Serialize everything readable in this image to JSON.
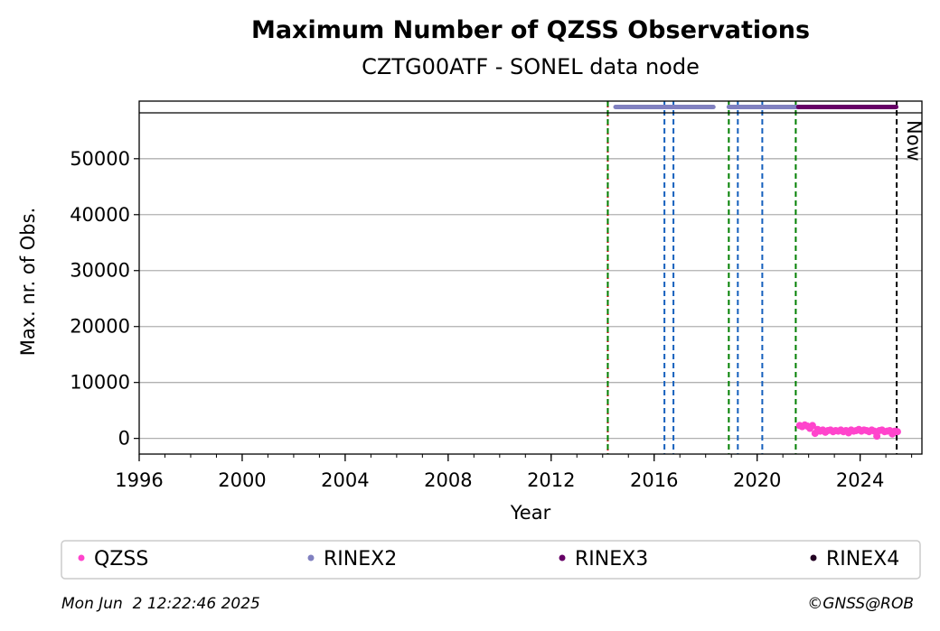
{
  "chart_data": {
    "type": "scatter",
    "title": "Maximum Number of QZSS Observations",
    "subtitle": "CZTG00ATF - SONEL data node",
    "xlabel": "Year",
    "ylabel": "Max. nr. of Obs.",
    "xlim": [
      1996,
      2026.4
    ],
    "ylim": [
      -2800,
      58200
    ],
    "x_ticks": [
      "1996",
      "2000",
      "2004",
      "2008",
      "2012",
      "2016",
      "2020",
      "2024"
    ],
    "y_ticks": [
      "0",
      "10000",
      "20000",
      "30000",
      "40000",
      "50000"
    ],
    "grid": "horizontal",
    "series": [
      {
        "name": "QZSS",
        "color": "#ff44cc",
        "points": [
          [
            2021.65,
            2300
          ],
          [
            2021.75,
            2100
          ],
          [
            2021.85,
            2400
          ],
          [
            2021.95,
            2200
          ],
          [
            2022.05,
            1800
          ],
          [
            2022.15,
            2300
          ],
          [
            2022.25,
            900
          ],
          [
            2022.35,
            1600
          ],
          [
            2022.45,
            1300
          ],
          [
            2022.55,
            1500
          ],
          [
            2022.65,
            1100
          ],
          [
            2022.75,
            1400
          ],
          [
            2022.85,
            1500
          ],
          [
            2022.95,
            1200
          ],
          [
            2023.05,
            1400
          ],
          [
            2023.15,
            1300
          ],
          [
            2023.25,
            1500
          ],
          [
            2023.35,
            1200
          ],
          [
            2023.45,
            1400
          ],
          [
            2023.55,
            1000
          ],
          [
            2023.65,
            1500
          ],
          [
            2023.75,
            1300
          ],
          [
            2023.85,
            1400
          ],
          [
            2023.95,
            1600
          ],
          [
            2024.05,
            1300
          ],
          [
            2024.15,
            1500
          ],
          [
            2024.25,
            1400
          ],
          [
            2024.35,
            1200
          ],
          [
            2024.45,
            1500
          ],
          [
            2024.55,
            1300
          ],
          [
            2024.65,
            400
          ],
          [
            2024.75,
            1400
          ],
          [
            2024.85,
            1500
          ],
          [
            2024.95,
            1200
          ],
          [
            2025.05,
            1300
          ],
          [
            2025.15,
            1400
          ],
          [
            2025.25,
            800
          ],
          [
            2025.35,
            1300
          ],
          [
            2025.45,
            1200
          ]
        ]
      },
      {
        "name": "RINEX2",
        "color": "#8080c0",
        "ranges": [
          [
            2014.5,
            2018.3
          ],
          [
            2018.9,
            2021.6
          ]
        ]
      },
      {
        "name": "RINEX3",
        "color": "#660066",
        "ranges": [
          [
            2021.6,
            2025.4
          ]
        ]
      },
      {
        "name": "RINEX4",
        "color": "#220022",
        "ranges": []
      }
    ],
    "vlines": [
      {
        "x": 2014.2,
        "color": "#cc0000",
        "style": "dotted"
      },
      {
        "x": 2014.2,
        "color": "#008000",
        "style": "dashed"
      },
      {
        "x": 2016.4,
        "color": "#1560bd",
        "style": "dashed"
      },
      {
        "x": 2016.75,
        "color": "#1560bd",
        "style": "dashed"
      },
      {
        "x": 2018.9,
        "color": "#008000",
        "style": "dashed"
      },
      {
        "x": 2019.25,
        "color": "#1560bd",
        "style": "dashed"
      },
      {
        "x": 2020.2,
        "color": "#1560bd",
        "style": "dashed"
      },
      {
        "x": 2021.5,
        "color": "#008000",
        "style": "dashed"
      },
      {
        "x": 2025.42,
        "color": "#000000",
        "style": "dashed"
      }
    ],
    "now_label": "Now",
    "legend_placement": "bottom"
  },
  "footer": {
    "timestamp": "Mon Jun  2 12:22:46 2025",
    "credit": "©GNSS@ROB"
  }
}
